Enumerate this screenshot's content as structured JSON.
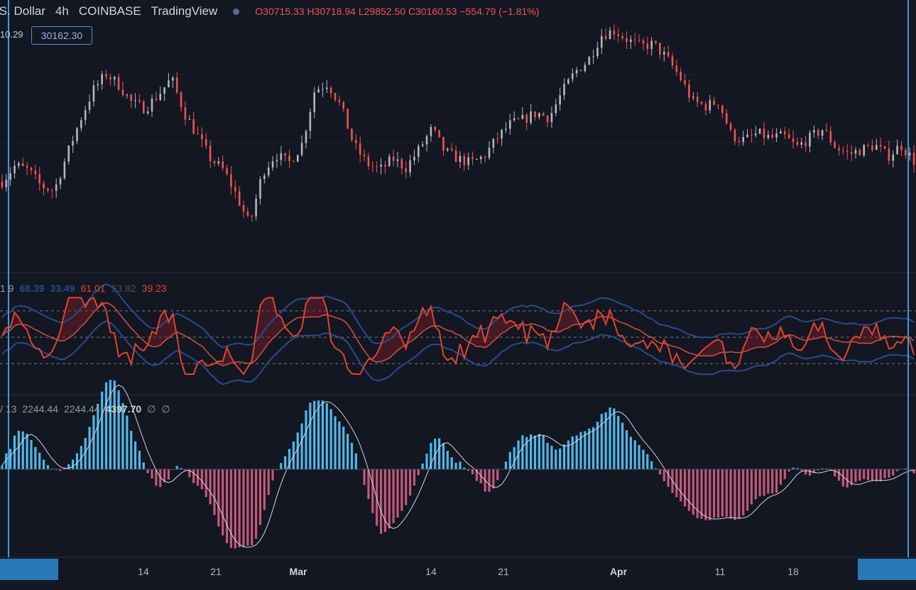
{
  "header": {
    "symbol": ".S. Dollar",
    "interval": "4h",
    "exchange": "COINBASE",
    "platform": "TradingView",
    "open": "O30715.33",
    "high": "H30718.94",
    "low": "L29852.50",
    "close": "C30160.53",
    "change": "−554.79 (−1.81%)"
  },
  "price_scale": {
    "left_value": "10.29",
    "last_price": "30162.30"
  },
  "indicator_rsi": {
    "prefix": "1 9",
    "v1": "68.39",
    "v2": "33.49",
    "v3": "61.01",
    "v4": "53.82",
    "v5": "39.23"
  },
  "indicator_hist": {
    "prefix": "/ 13",
    "v1": "2244.44",
    "v2": "2244.44",
    "v3": "4397.70",
    "v4": "∅",
    "v5": "∅"
  },
  "x_axis": {
    "labels": [
      "14",
      "21",
      "Mar",
      "14",
      "21",
      "Apr",
      "11",
      "18"
    ]
  },
  "colors": {
    "background": "#131722",
    "up_candle": "#b2b5be",
    "down_candle": "#ef5350",
    "rsi_line": "#e0432f",
    "band": "#2a4a8a",
    "hist_pos": "#4fb8e8",
    "hist_neg": "#c4587a",
    "crosshair": "#3d9be0"
  },
  "chart_data": {
    "type": "candlestick",
    "price_approx": [
      29800,
      30500,
      30300,
      29600,
      29400,
      31000,
      32500,
      33800,
      34500,
      34000,
      33200,
      33000,
      33600,
      34300,
      32800,
      31800,
      30800,
      30300,
      29200,
      27900,
      30200,
      31000,
      30600,
      31400,
      33800,
      34100,
      33100,
      31400,
      30600,
      30300,
      30800,
      30400,
      31200,
      32100,
      31100,
      30800,
      30600,
      30900,
      31700,
      32300,
      32500,
      32800,
      32600,
      33700,
      34600,
      35100,
      36200,
      36400,
      36000,
      35700,
      35800,
      35200,
      34400,
      33300,
      33100,
      33300,
      31800,
      31600,
      31900,
      31700,
      31800,
      31300,
      31700,
      32100,
      31300,
      31000,
      31200,
      31400,
      30900,
      31400,
      30700
    ]
  }
}
